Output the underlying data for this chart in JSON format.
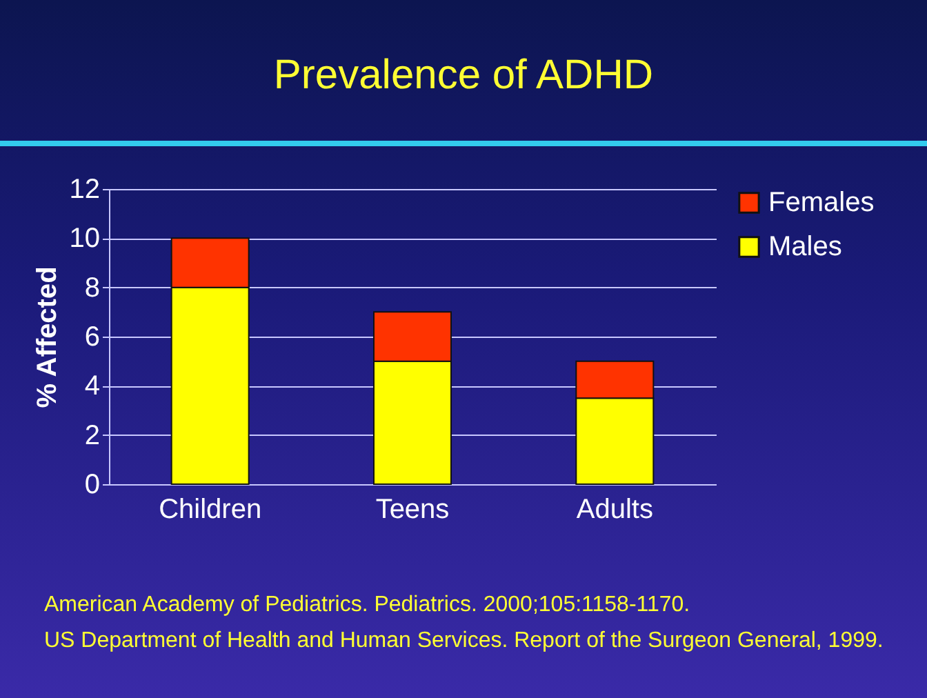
{
  "chart_data": {
    "type": "bar",
    "title": "Prevalence of ADHD",
    "ylabel": "% Affected",
    "categories": [
      "Children",
      "Teens",
      "Adults"
    ],
    "series": [
      {
        "name": "Males",
        "color": "#ffff00",
        "values": [
          8,
          5,
          3.5
        ]
      },
      {
        "name": "Females",
        "color": "#ff3300",
        "values": [
          2,
          2,
          1.5
        ]
      }
    ],
    "stacked": true,
    "ylim": [
      0,
      12
    ],
    "yticks": [
      0,
      2,
      4,
      6,
      8,
      10,
      12
    ],
    "grid": "y",
    "legend": "right",
    "annotations": [
      "American Academy of Pediatrics. Pediatrics. 2000;105:1158-1170.",
      "US Department of Health and Human Services.  Report of the Surgeon General, 1999."
    ]
  }
}
